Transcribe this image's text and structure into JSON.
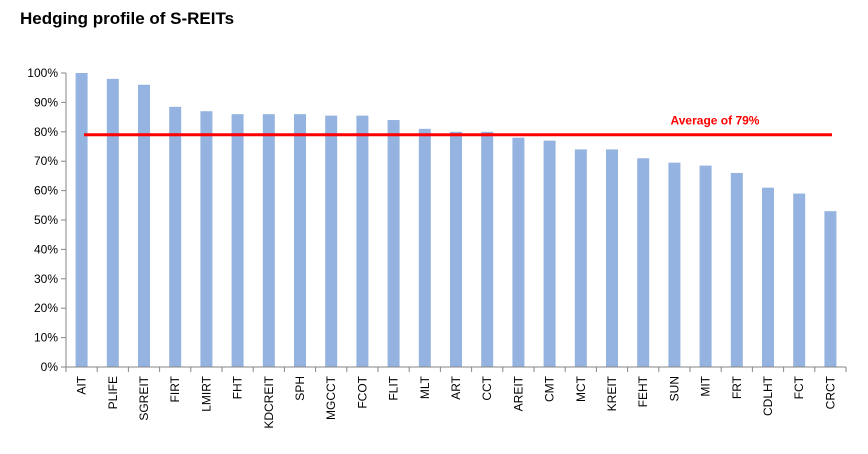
{
  "chart_data": {
    "type": "bar",
    "title": "Hedging profile  of S-REITs",
    "categories": [
      "AIT",
      "PLIFE",
      "SGREIT",
      "FIRT",
      "LMIRT",
      "FHT",
      "KDCREIT",
      "SPH",
      "MGCCT",
      "FCOT",
      "FLIT",
      "MLT",
      "ART",
      "CCT",
      "AREIT",
      "CMT",
      "MCT",
      "KREIT",
      "FEHT",
      "SUN",
      "MIT",
      "FRT",
      "CDLHT",
      "FCT",
      "CRCT"
    ],
    "series": [
      {
        "values": [
          100,
          98,
          96,
          88.5,
          87,
          86,
          86,
          86,
          85.5,
          85.5,
          84,
          81,
          80,
          80,
          78,
          77,
          74,
          74,
          71,
          69.5,
          68.5,
          66,
          61,
          59,
          53
        ]
      }
    ],
    "ylim": [
      0,
      100
    ],
    "yticks": [
      "0%",
      "10%",
      "20%",
      "30%",
      "40%",
      "50%",
      "60%",
      "70%",
      "80%",
      "90%",
      "100%"
    ],
    "bar_color": "#95b3e0",
    "average": {
      "value": 79,
      "label": "Average of 79%",
      "color": "#ff0000"
    },
    "grid": false
  }
}
